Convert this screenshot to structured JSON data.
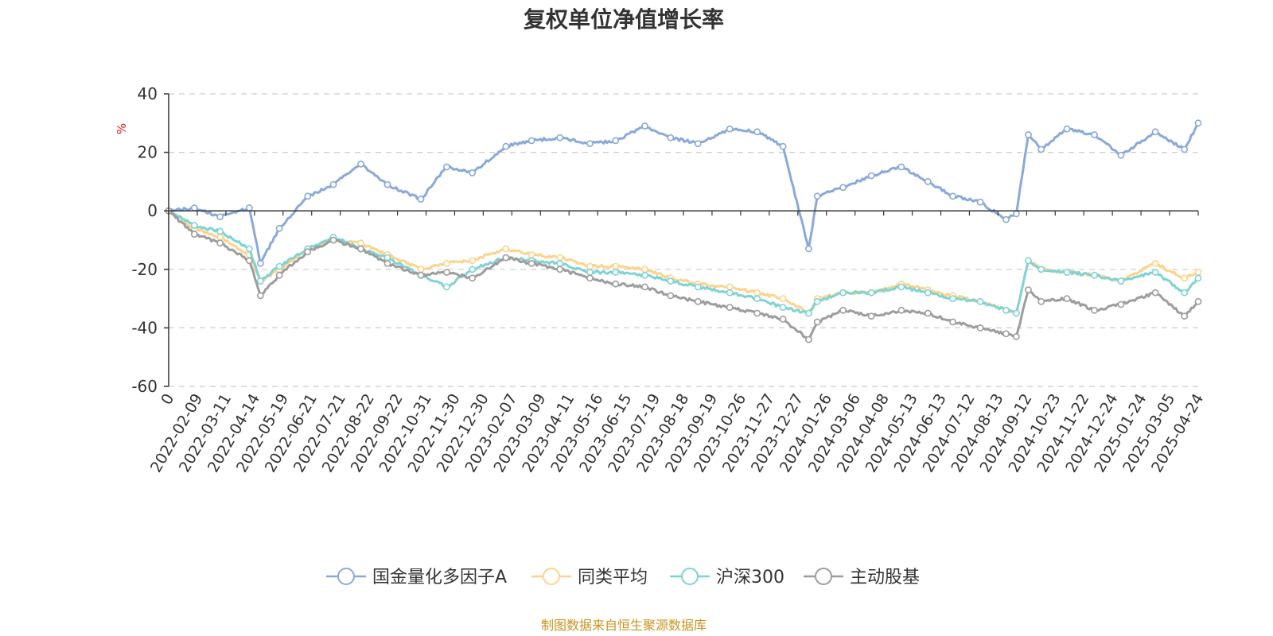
{
  "chart_data": {
    "type": "line",
    "title": "复权单位净值增长率",
    "ylabel": "%",
    "xlabel": "",
    "ylim": [
      -60,
      40
    ],
    "yticks": [
      40,
      20,
      0,
      -20,
      -40,
      -60
    ],
    "grid": true,
    "legend_position": "bottom",
    "x_ticks": [
      "0",
      "2022-02-09",
      "2022-03-11",
      "2022-04-14",
      "2022-05-19",
      "2022-06-21",
      "2022-07-21",
      "2022-08-22",
      "2022-09-22",
      "2022-10-31",
      "2022-11-30",
      "2022-12-30",
      "2023-02-07",
      "2023-03-09",
      "2023-04-11",
      "2023-05-16",
      "2023-06-15",
      "2023-07-19",
      "2023-08-18",
      "2023-09-19",
      "2023-10-26",
      "2023-11-27",
      "2023-12-27",
      "2024-01-26",
      "2024-03-06",
      "2024-04-08",
      "2024-05-13",
      "2024-06-13",
      "2024-07-12",
      "2024-08-13",
      "2024-09-12",
      "2024-10-23",
      "2024-11-22",
      "2024-12-24",
      "2025-01-24",
      "2025-03-05",
      "2025-04-24"
    ],
    "x": [
      "2022-01-10",
      "2022-02-09",
      "2022-03-11",
      "2022-04-14",
      "2022-04-27",
      "2022-05-19",
      "2022-06-21",
      "2022-07-21",
      "2022-08-22",
      "2022-09-22",
      "2022-10-31",
      "2022-11-30",
      "2022-12-30",
      "2023-02-07",
      "2023-03-09",
      "2023-04-11",
      "2023-05-16",
      "2023-06-15",
      "2023-07-19",
      "2023-08-18",
      "2023-09-19",
      "2023-10-26",
      "2023-11-27",
      "2023-12-27",
      "2024-01-26",
      "2024-02-05",
      "2024-03-06",
      "2024-04-08",
      "2024-05-13",
      "2024-06-13",
      "2024-07-12",
      "2024-08-13",
      "2024-09-12",
      "2024-09-24",
      "2024-10-08",
      "2024-10-23",
      "2024-11-22",
      "2024-12-24",
      "2025-01-24",
      "2025-03-05",
      "2025-04-08",
      "2025-04-24"
    ],
    "series": [
      {
        "name": "国金量化多因子A",
        "color": "#8aa9d8",
        "values": [
          0,
          1,
          -2,
          1,
          -18,
          -6,
          5,
          9,
          16,
          9,
          4,
          15,
          13,
          22,
          24,
          25,
          23,
          24,
          29,
          25,
          23,
          28,
          27,
          22,
          -13,
          5,
          8,
          12,
          15,
          10,
          5,
          3,
          -3,
          -1,
          26,
          21,
          28,
          26,
          19,
          27,
          21,
          30
        ]
      },
      {
        "name": "同类平均",
        "color": "#fcd38b",
        "values": [
          0,
          -6,
          -9,
          -15,
          -24,
          -20,
          -13,
          -10,
          -11,
          -15,
          -20,
          -18,
          -17,
          -13,
          -15,
          -16,
          -19,
          -19,
          -20,
          -23,
          -25,
          -26,
          -28,
          -30,
          -35,
          -30,
          -28,
          -28,
          -25,
          -27,
          -29,
          -31,
          -34,
          -35,
          -17,
          -20,
          -21,
          -22,
          -24,
          -18,
          -23,
          -21
        ]
      },
      {
        "name": "沪深300",
        "color": "#7fd3d3",
        "values": [
          0,
          -5,
          -7,
          -13,
          -24,
          -19,
          -13,
          -9,
          -13,
          -16,
          -22,
          -26,
          -20,
          -16,
          -17,
          -18,
          -21,
          -21,
          -22,
          -24,
          -26,
          -28,
          -30,
          -33,
          -35,
          -31,
          -28,
          -28,
          -26,
          -28,
          -30,
          -31,
          -34,
          -35,
          -17,
          -20,
          -21,
          -22,
          -24,
          -21,
          -28,
          -23
        ]
      },
      {
        "name": "主动股基",
        "color": "#9d9d9d",
        "values": [
          0,
          -8,
          -11,
          -17,
          -29,
          -22,
          -14,
          -10,
          -13,
          -18,
          -22,
          -21,
          -23,
          -16,
          -18,
          -20,
          -23,
          -25,
          -26,
          -29,
          -31,
          -33,
          -35,
          -37,
          -44,
          -38,
          -34,
          -36,
          -34,
          -35,
          -38,
          -40,
          -42,
          -43,
          -27,
          -31,
          -30,
          -34,
          -32,
          -28,
          -36,
          -31
        ]
      }
    ]
  },
  "legend": {
    "items": [
      "国金量化多因子A",
      "同类平均",
      "沪深300",
      "主动股基"
    ]
  },
  "source_text": "制图数据来自恒生聚源数据库"
}
